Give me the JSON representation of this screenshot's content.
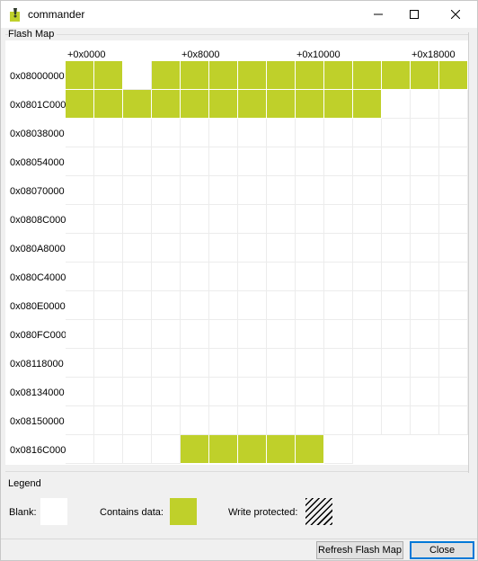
{
  "window": {
    "title": "commander",
    "icon": "commander-app-icon",
    "controls": [
      "minimize-icon",
      "maximize-icon",
      "close-icon"
    ]
  },
  "flash_map": {
    "group_label": "Flash Map",
    "column_labels": [
      "+0x0000",
      "+0x8000",
      "+0x10000",
      "+0x18000"
    ],
    "row_labels": [
      "0x08000000",
      "0x0801C000",
      "0x08038000",
      "0x08054000",
      "0x08070000",
      "0x0808C000",
      "0x080A8000",
      "0x080C4000",
      "0x080E0000",
      "0x080FC000",
      "0x08118000",
      "0x08134000",
      "0x08150000",
      "0x0816C000"
    ],
    "columns": 14,
    "rows": [
      "11011111111111",
      "11111111111000",
      "00000000000000",
      "00000000000000",
      "00000000000000",
      "00000000000000",
      "00000000000000",
      "00000000000000",
      "00000000000000",
      "00000000000000",
      "00000000000000",
      "00000000000000",
      "00000000000000",
      "0000111110"
    ],
    "fill_color": "#bfd02a"
  },
  "legend": {
    "group_label": "Legend",
    "blank_label": "Blank:",
    "data_label": "Contains data:",
    "protected_label": "Write protected:"
  },
  "buttons": {
    "refresh": "Refresh Flash Map",
    "close": "Close"
  }
}
